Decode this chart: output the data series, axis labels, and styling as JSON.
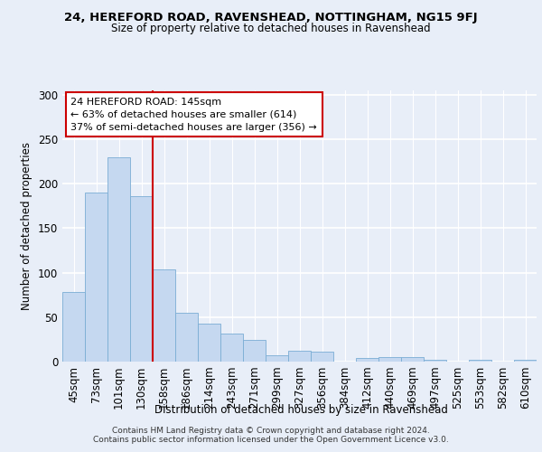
{
  "title1": "24, HEREFORD ROAD, RAVENSHEAD, NOTTINGHAM, NG15 9FJ",
  "title2": "Size of property relative to detached houses in Ravenshead",
  "xlabel": "Distribution of detached houses by size in Ravenshead",
  "ylabel": "Number of detached properties",
  "categories": [
    "45sqm",
    "73sqm",
    "101sqm",
    "130sqm",
    "158sqm",
    "186sqm",
    "214sqm",
    "243sqm",
    "271sqm",
    "299sqm",
    "327sqm",
    "356sqm",
    "384sqm",
    "412sqm",
    "440sqm",
    "469sqm",
    "497sqm",
    "525sqm",
    "553sqm",
    "582sqm",
    "610sqm"
  ],
  "values": [
    78,
    190,
    230,
    186,
    104,
    55,
    43,
    32,
    24,
    7,
    12,
    11,
    0,
    4,
    5,
    5,
    2,
    0,
    2,
    0,
    2
  ],
  "bar_color": "#c5d8f0",
  "bar_edge_color": "#7aadd4",
  "vline_x": 3.5,
  "vline_color": "#cc0000",
  "annotation_text": "24 HEREFORD ROAD: 145sqm\n← 63% of detached houses are smaller (614)\n37% of semi-detached houses are larger (356) →",
  "annotation_box_color": "#ffffff",
  "annotation_box_edge": "#cc0000",
  "footnote": "Contains HM Land Registry data © Crown copyright and database right 2024.\nContains public sector information licensed under the Open Government Licence v3.0.",
  "ylim": [
    0,
    305
  ],
  "background_color": "#e8eef8",
  "grid_color": "#ffffff"
}
